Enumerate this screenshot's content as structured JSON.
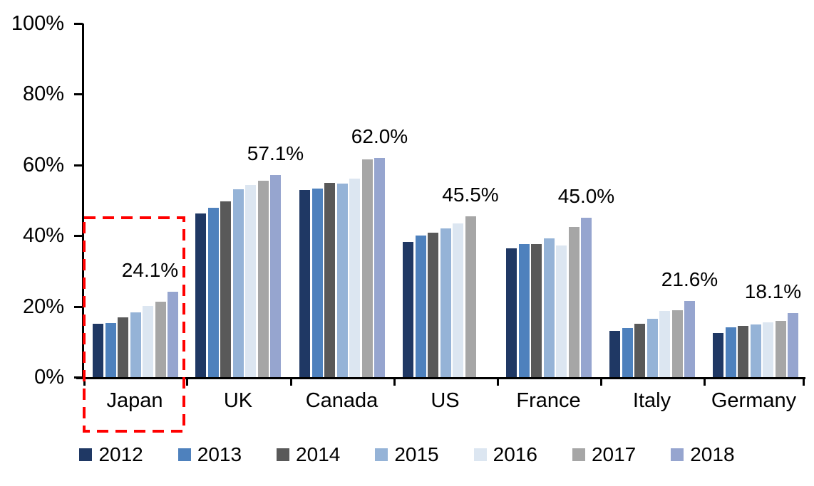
{
  "chart_data": {
    "type": "bar",
    "title": "",
    "xlabel": "",
    "ylabel": "",
    "ylim": [
      0,
      100
    ],
    "grid": false,
    "legend_position": "bottom",
    "y_ticks": [
      "0%",
      "20%",
      "40%",
      "60%",
      "80%",
      "100%"
    ],
    "categories": [
      "Japan",
      "UK",
      "Canada",
      "US",
      "France",
      "Italy",
      "Germany"
    ],
    "series": [
      {
        "name": "2012",
        "color": "#1F3864",
        "values": [
          15.0,
          46.2,
          53.0,
          38.2,
          36.5,
          13.0,
          12.5
        ]
      },
      {
        "name": "2013",
        "color": "#4E81BD",
        "values": [
          15.3,
          47.8,
          53.4,
          40.0,
          37.6,
          13.8,
          14.0
        ]
      },
      {
        "name": "2014",
        "color": "#595959",
        "values": [
          16.9,
          49.8,
          55.0,
          40.9,
          37.6,
          15.1,
          14.4
        ]
      },
      {
        "name": "2015",
        "color": "#95B3D7",
        "values": [
          18.4,
          53.1,
          54.8,
          42.1,
          39.3,
          16.6,
          14.8
        ]
      },
      {
        "name": "2016",
        "color": "#DCE6F1",
        "values": [
          20.2,
          54.4,
          56.2,
          43.4,
          37.2,
          18.7,
          15.4
        ]
      },
      {
        "name": "2017",
        "color": "#A6A6A6",
        "values": [
          21.3,
          55.6,
          61.6,
          45.5,
          42.4,
          19.0,
          15.8
        ]
      },
      {
        "name": "2018",
        "color": "#96A5CF",
        "values": [
          24.1,
          57.1,
          62.0,
          null,
          45.0,
          21.6,
          18.1
        ]
      }
    ],
    "value_labels": [
      "24.1%",
      "57.1%",
      "62.0%",
      "45.5%",
      "45.0%",
      "21.6%",
      "18.1%"
    ],
    "highlight": {
      "category": "Japan",
      "style": "red-dashed-box",
      "color": "#FF0000"
    }
  }
}
